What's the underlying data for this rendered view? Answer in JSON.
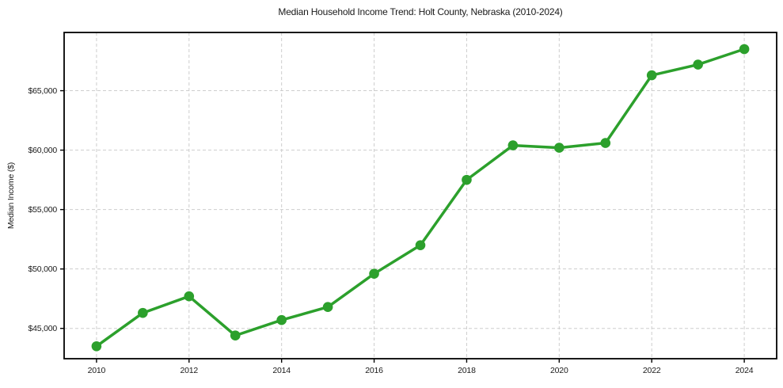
{
  "figure": {
    "title": "Median Household Income Trend: Holt County, Nebraska (2010-2024)",
    "ylabel": "Median Income ($)",
    "background": "#ffffff"
  },
  "chart_data": {
    "type": "line",
    "title": "Median Household Income Trend: Holt County, Nebraska (2010-2024)",
    "xlabel": "",
    "ylabel": "Median Income ($)",
    "x": [
      2010,
      2011,
      2012,
      2013,
      2014,
      2015,
      2016,
      2017,
      2018,
      2019,
      2020,
      2021,
      2022,
      2023,
      2024
    ],
    "series": [
      {
        "name": "Median Household Income",
        "values": [
          43500,
          46300,
          47700,
          44400,
          45700,
          46800,
          49600,
          52000,
          57500,
          60400,
          60200,
          60600,
          66300,
          67200,
          68500
        ]
      }
    ],
    "xlim": [
      2009.3,
      2024.7
    ],
    "ylim": [
      42450,
      69900
    ],
    "xticks": {
      "values": [
        2010,
        2012,
        2014,
        2016,
        2018,
        2020,
        2022,
        2024
      ],
      "labels": [
        "2010",
        "2012",
        "2014",
        "2016",
        "2018",
        "2020",
        "2022",
        "2024"
      ]
    },
    "yticks": {
      "values": [
        45000,
        50000,
        55000,
        60000,
        65000
      ],
      "labels": [
        "$45,000",
        "$50,000",
        "$55,000",
        "$60,000",
        "$65,000"
      ]
    },
    "grid": true,
    "legend": "none",
    "colors": {
      "line": "#2ca02c",
      "marker": "#2ca02c",
      "grid": "#cdcdcd",
      "spine": "#000000",
      "tick": "#000000",
      "text": "#1a1a1a"
    },
    "line_width": 3.5,
    "marker_radius": 6.3
  }
}
